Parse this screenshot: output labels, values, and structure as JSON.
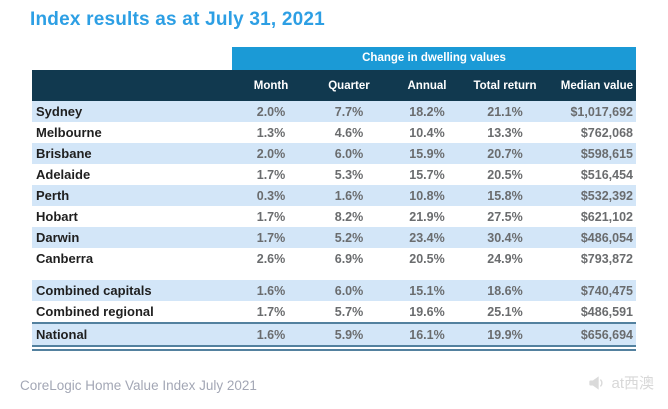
{
  "title": "Index results as at July 31, 2021",
  "table": {
    "band_label": "Change in dwelling values",
    "columns": [
      "Month",
      "Quarter",
      "Annual",
      "Total return",
      "Median value"
    ],
    "city_rows": [
      [
        "Sydney",
        "2.0%",
        "7.7%",
        "18.2%",
        "21.1%",
        "$1,017,692"
      ],
      [
        "Melbourne",
        "1.3%",
        "4.6%",
        "10.4%",
        "13.3%",
        "$762,068"
      ],
      [
        "Brisbane",
        "2.0%",
        "6.0%",
        "15.9%",
        "20.7%",
        "$598,615"
      ],
      [
        "Adelaide",
        "1.7%",
        "5.3%",
        "15.7%",
        "20.5%",
        "$516,454"
      ],
      [
        "Perth",
        "0.3%",
        "1.6%",
        "10.8%",
        "15.8%",
        "$532,392"
      ],
      [
        "Hobart",
        "1.7%",
        "8.2%",
        "21.9%",
        "27.5%",
        "$621,102"
      ],
      [
        "Darwin",
        "1.7%",
        "5.2%",
        "23.4%",
        "30.4%",
        "$486,054"
      ],
      [
        "Canberra",
        "2.6%",
        "6.9%",
        "20.5%",
        "24.9%",
        "$793,872"
      ]
    ],
    "combined_rows": [
      [
        "Combined capitals",
        "1.6%",
        "6.0%",
        "15.1%",
        "18.6%",
        "$740,475"
      ],
      [
        "Combined regional",
        "1.7%",
        "5.7%",
        "19.6%",
        "25.1%",
        "$486,591"
      ]
    ],
    "national_row": [
      "National",
      "1.6%",
      "5.9%",
      "16.1%",
      "19.9%",
      "$656,694"
    ]
  },
  "footer": {
    "source_label": "CoreLogic Home Value Index July 2021"
  },
  "watermark": {
    "icon": "megaphone-icon",
    "label": "at西澳"
  },
  "colors": {
    "title_blue": "#2D9FE4",
    "accent_blue": "#1B9AD6",
    "header_navy": "#11394F",
    "row_stripe": "#D3E6F8",
    "total_border": "#53819F"
  }
}
